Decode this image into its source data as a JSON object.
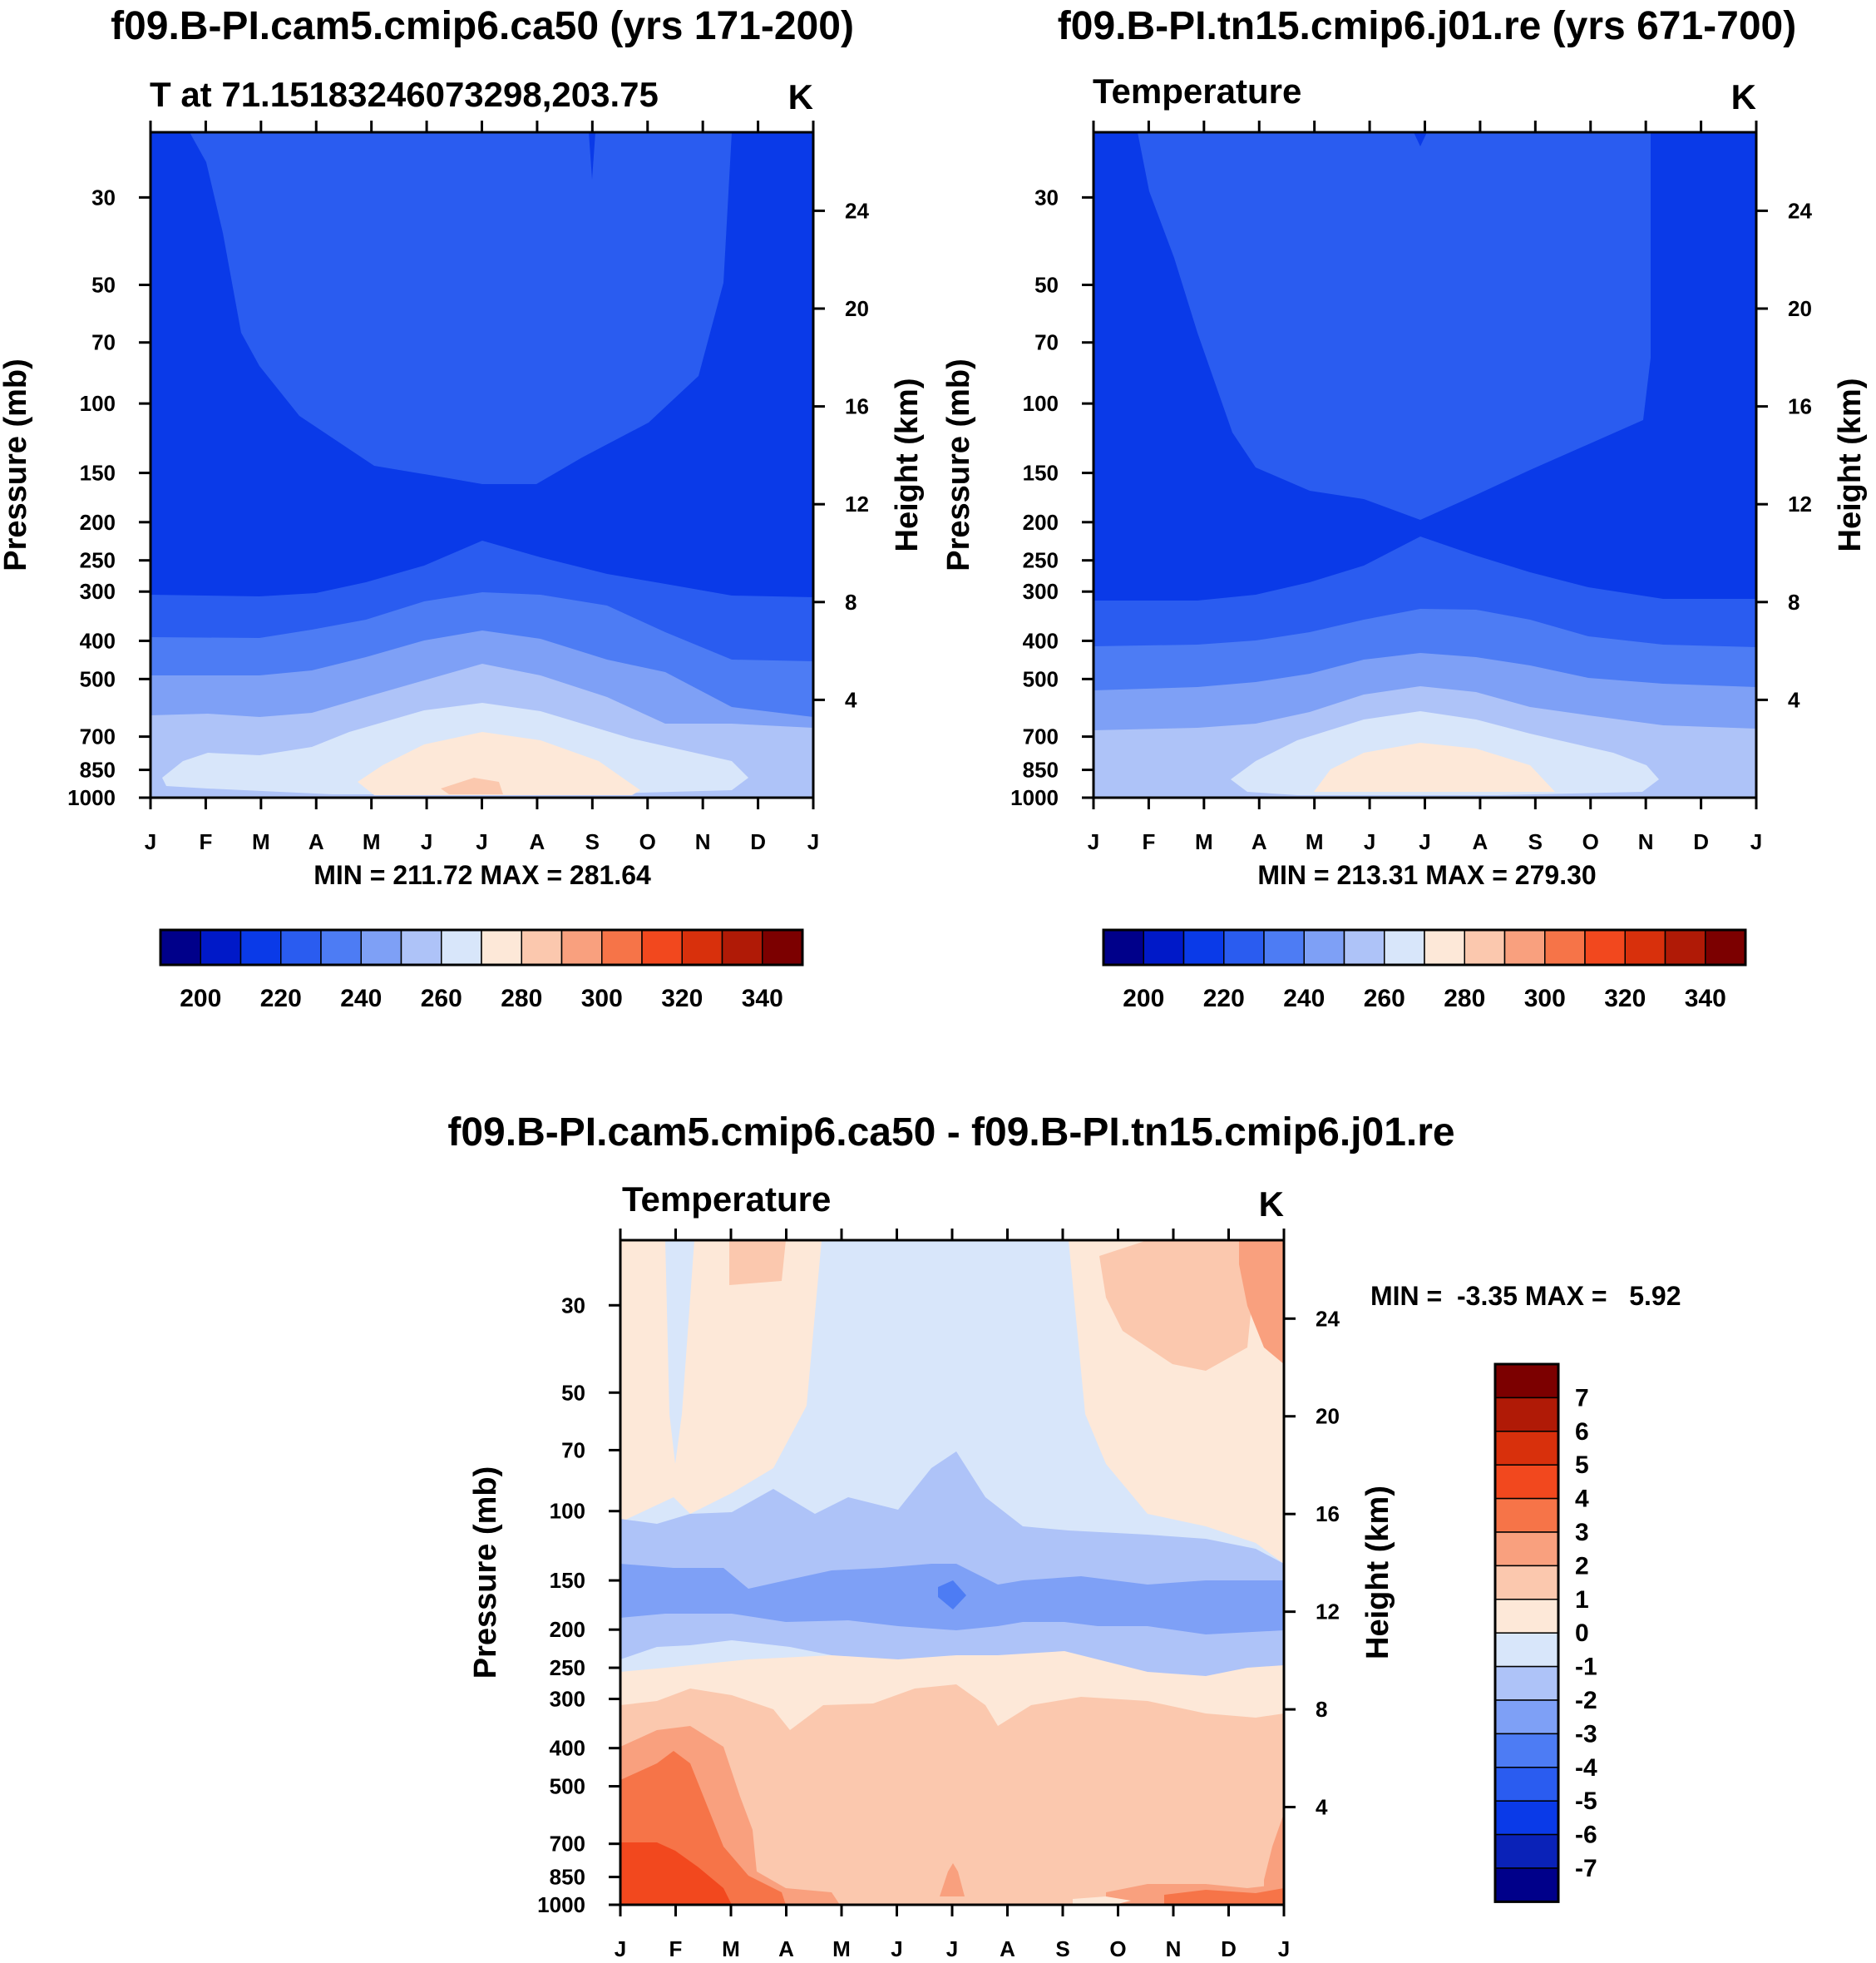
{
  "colors": {
    "temp_scale": [
      "#00008a",
      "#0019c8",
      "#0a3ae8",
      "#2a5cf0",
      "#4d7cf4",
      "#7ea0f6",
      "#aec3f8",
      "#d8e6fa",
      "#fde8d8",
      "#fbc8ae",
      "#f9a07e",
      "#f67448",
      "#f2481e",
      "#d8300c",
      "#b01a06",
      "#7c0000"
    ],
    "diff_scale": [
      "#00008a",
      "#0a22b8",
      "#0a3ae8",
      "#2a5cf0",
      "#4d7cf4",
      "#7ea0f6",
      "#aec3f8",
      "#d8e6fa",
      "#fde8d8",
      "#fbc8ae",
      "#f9a07e",
      "#f67448",
      "#f2481e",
      "#d8300c",
      "#b01a06",
      "#7c0000"
    ]
  },
  "chart_data": [
    {
      "type": "contour",
      "title": "f09.B-PI.cam5.cmip6.ca50 (yrs 171-200)",
      "subtitle_left": "T at 71.15183246073298,203.75",
      "subtitle_right": "K",
      "xlabel": "",
      "ylabel": "Pressure (mb)",
      "ylabel_right": "Height (km)",
      "x_ticks": [
        "J",
        "F",
        "M",
        "A",
        "M",
        "J",
        "J",
        "A",
        "S",
        "O",
        "N",
        "D",
        "J"
      ],
      "y_ticks": [
        "30",
        "50",
        "70",
        "100",
        "150",
        "200",
        "250",
        "300",
        "400",
        "500",
        "700",
        "850",
        "1000"
      ],
      "y_tick_values": [
        30,
        50,
        70,
        100,
        150,
        200,
        250,
        300,
        400,
        500,
        700,
        850,
        1000
      ],
      "height_ticks": [
        "24",
        "20",
        "16",
        "12",
        "8",
        "4"
      ],
      "height_tick_values": [
        24,
        20,
        16,
        12,
        8,
        4
      ],
      "ylim": [
        20,
        1000
      ],
      "min_max": "MIN = 211.72 MAX = 281.64",
      "min": 211.72,
      "max": 281.64,
      "colorbar_labels": [
        "200",
        "220",
        "240",
        "260",
        "280",
        "300",
        "320",
        "340"
      ],
      "levels": [
        200,
        220,
        240,
        260,
        280,
        300,
        320,
        340
      ]
    },
    {
      "type": "contour",
      "title": "f09.B-PI.tn15.cmip6.j01.re (yrs 671-700)",
      "subtitle_left": "Temperature",
      "subtitle_right": "K",
      "xlabel": "",
      "ylabel": "Pressure (mb)",
      "ylabel_right": "Height (km)",
      "x_ticks": [
        "J",
        "F",
        "M",
        "A",
        "M",
        "J",
        "J",
        "A",
        "S",
        "O",
        "N",
        "D",
        "J"
      ],
      "y_ticks": [
        "30",
        "50",
        "70",
        "100",
        "150",
        "200",
        "250",
        "300",
        "400",
        "500",
        "700",
        "850",
        "1000"
      ],
      "y_tick_values": [
        30,
        50,
        70,
        100,
        150,
        200,
        250,
        300,
        400,
        500,
        700,
        850,
        1000
      ],
      "height_ticks": [
        "24",
        "20",
        "16",
        "12",
        "8",
        "4"
      ],
      "height_tick_values": [
        24,
        20,
        16,
        12,
        8,
        4
      ],
      "ylim": [
        20,
        1000
      ],
      "min_max": "MIN = 213.31 MAX = 279.30",
      "min": 213.31,
      "max": 279.3,
      "colorbar_labels": [
        "200",
        "220",
        "240",
        "260",
        "280",
        "300",
        "320",
        "340"
      ],
      "levels": [
        200,
        220,
        240,
        260,
        280,
        300,
        320,
        340
      ]
    },
    {
      "type": "contour",
      "title": "f09.B-PI.cam5.cmip6.ca50 - f09.B-PI.tn15.cmip6.j01.re",
      "subtitle_left": "Temperature",
      "subtitle_right": "K",
      "xlabel": "",
      "ylabel": "Pressure (mb)",
      "ylabel_right": "Height (km)",
      "x_ticks": [
        "J",
        "F",
        "M",
        "A",
        "M",
        "J",
        "J",
        "A",
        "S",
        "O",
        "N",
        "D",
        "J"
      ],
      "y_ticks": [
        "30",
        "50",
        "70",
        "100",
        "150",
        "200",
        "250",
        "300",
        "400",
        "500",
        "700",
        "850",
        "1000"
      ],
      "y_tick_values": [
        30,
        50,
        70,
        100,
        150,
        200,
        250,
        300,
        400,
        500,
        700,
        850,
        1000
      ],
      "height_ticks": [
        "24",
        "20",
        "16",
        "12",
        "8",
        "4"
      ],
      "height_tick_values": [
        24,
        20,
        16,
        12,
        8,
        4
      ],
      "ylim": [
        20,
        1000
      ],
      "min_max": "MIN =  -3.35 MAX =   5.92",
      "min": -3.35,
      "max": 5.92,
      "colorbar_labels": [
        "7",
        "6",
        "5",
        "4",
        "3",
        "2",
        "1",
        "0",
        "-1",
        "-2",
        "-3",
        "-4",
        "-5",
        "-6",
        "-7"
      ],
      "levels": [
        7,
        6,
        5,
        4,
        3,
        2,
        1,
        0,
        -1,
        -2,
        -3,
        -4,
        -5,
        -6,
        -7
      ]
    }
  ]
}
